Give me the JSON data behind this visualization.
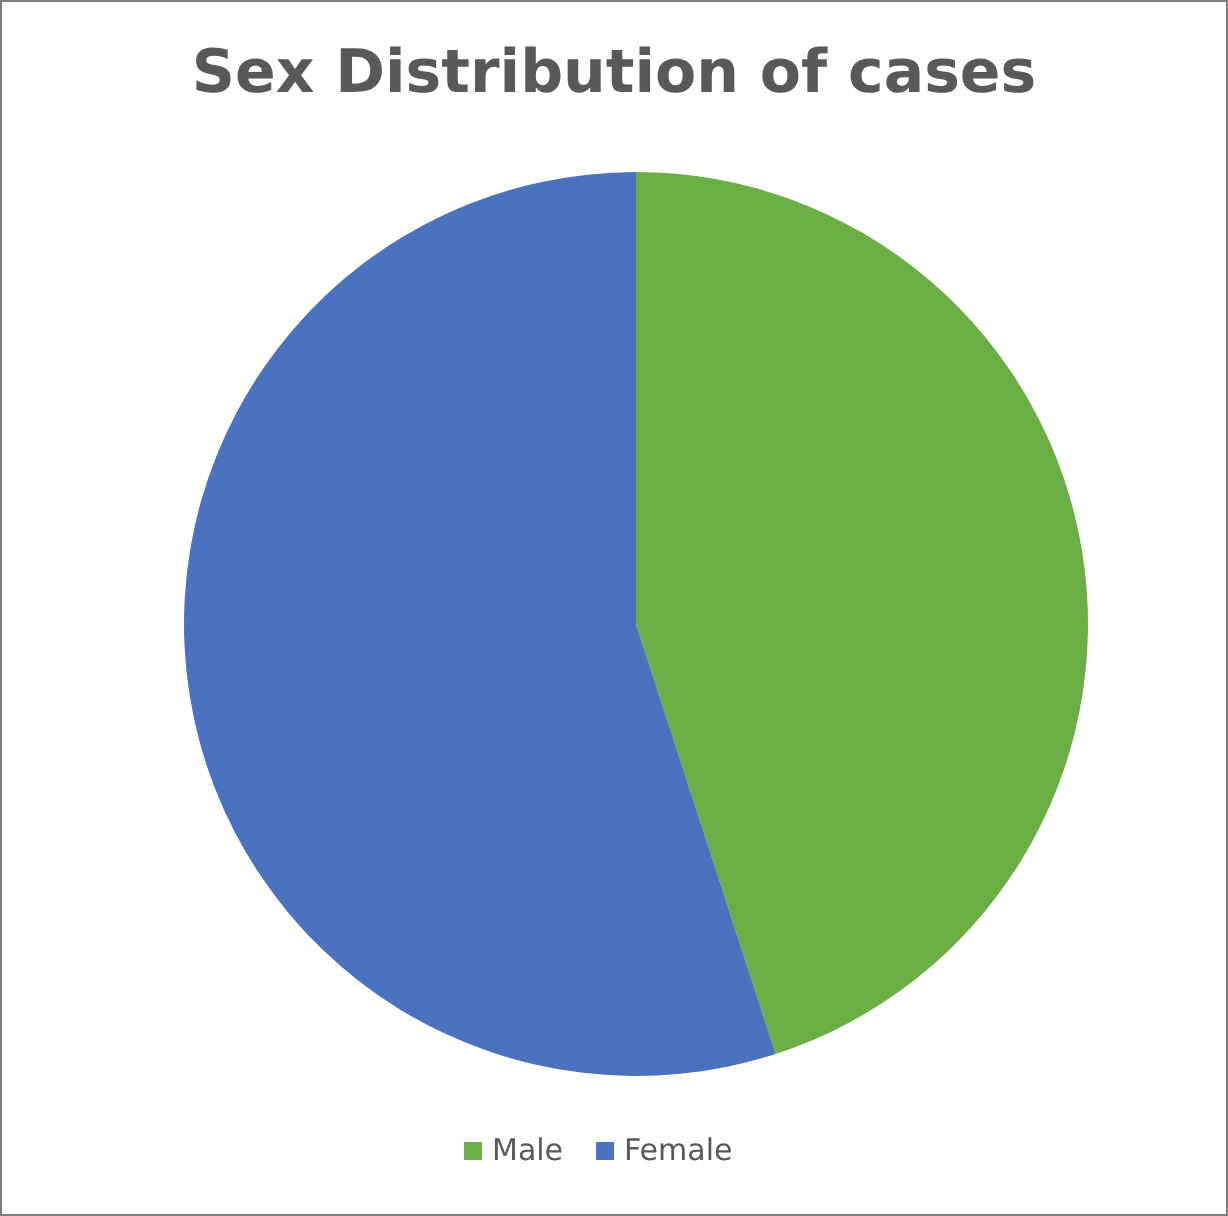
{
  "chart_data": {
    "type": "pie",
    "title": "Sex Distribution of cases",
    "categories": [
      "Male",
      "Female"
    ],
    "values": [
      45,
      55
    ],
    "colors": [
      "#6aae45",
      "#4a72bf"
    ],
    "legend": "bottom"
  }
}
